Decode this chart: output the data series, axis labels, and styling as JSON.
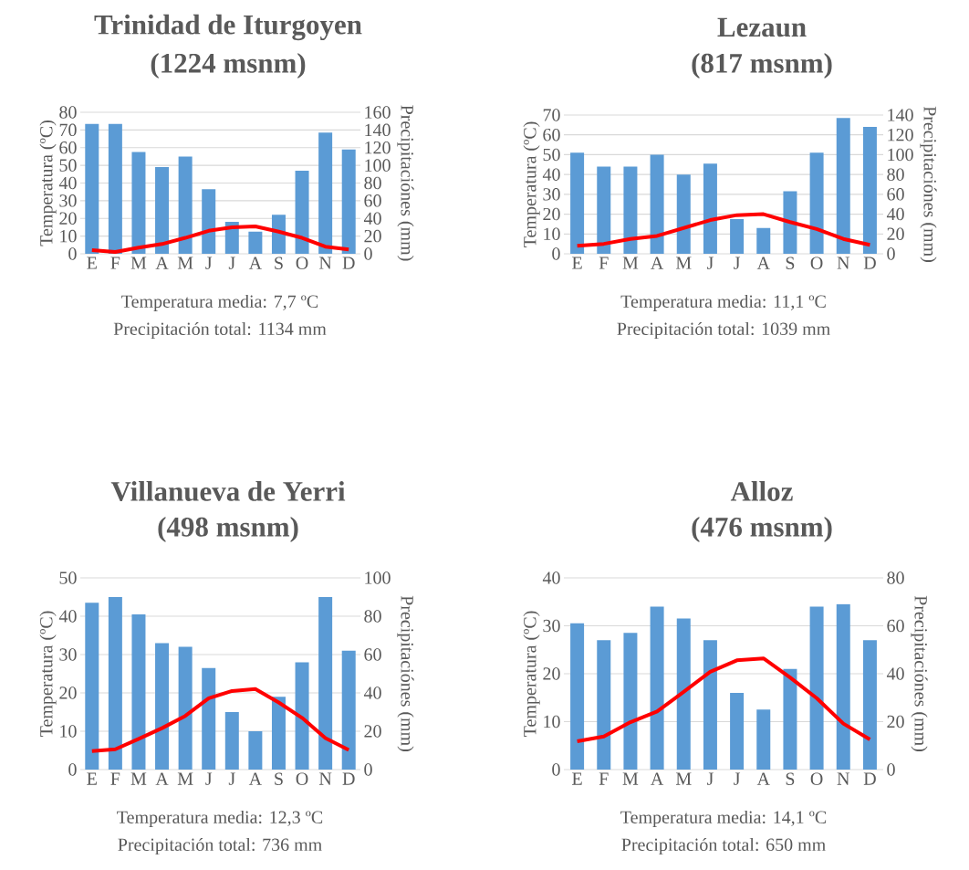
{
  "chart_data": [
    {
      "type": "bar",
      "title": "Trinidad de Iturgoyen",
      "subtitle": "(1224 msnm)",
      "categories": [
        "E",
        "F",
        "M",
        "A",
        "M",
        "J",
        "J",
        "A",
        "S",
        "O",
        "N",
        "D"
      ],
      "ylabel": "Temperatura (ºC)",
      "y2label": "Precipitaciónes (mm)",
      "ylim": [
        0,
        80
      ],
      "yticks": [
        0,
        10,
        20,
        30,
        40,
        50,
        60,
        70,
        80
      ],
      "y2lim": [
        0,
        160
      ],
      "y2ticks": [
        0,
        20,
        40,
        60,
        80,
        100,
        120,
        140,
        160
      ],
      "grid": "y",
      "annotations": [
        "Temperatura media: 7,7 ºC",
        "Precipitación total: 1134 mm"
      ],
      "series": [
        {
          "axis": "y2",
          "color": "#5b9bd5",
          "values": [
            147,
            147,
            115,
            98,
            110,
            73,
            36,
            25,
            44,
            94,
            137,
            118
          ]
        },
        {
          "type": "line",
          "color": "#ff0000",
          "values": [
            2,
            1,
            3.5,
            5.5,
            9,
            13,
            15,
            15.5,
            12.5,
            9,
            4,
            2.5
          ]
        }
      ]
    },
    {
      "type": "bar",
      "title": "Lezaun",
      "subtitle": "(817 msnm)",
      "categories": [
        "E",
        "F",
        "M",
        "A",
        "M",
        "J",
        "J",
        "A",
        "S",
        "O",
        "N",
        "D"
      ],
      "ylabel": "Temperatura (ºC)",
      "y2label": "Precipitaciónes (mm)",
      "ylim": [
        0,
        70
      ],
      "yticks": [
        0,
        10,
        20,
        30,
        40,
        50,
        60,
        70
      ],
      "y2lim": [
        0,
        140
      ],
      "y2ticks": [
        0,
        20,
        40,
        60,
        80,
        100,
        120,
        140
      ],
      "grid": "y",
      "annotations": [
        "Temperatura media: 11,1 ºC",
        "Precipitación total: 1039 mm"
      ],
      "series": [
        {
          "axis": "y2",
          "color": "#5b9bd5",
          "values": [
            102,
            88,
            88,
            100,
            80,
            91,
            35,
            26,
            63,
            102,
            137,
            128
          ]
        },
        {
          "type": "line",
          "color": "#ff0000",
          "values": [
            4,
            5,
            7.5,
            9,
            13,
            17,
            19.5,
            20,
            16,
            12.5,
            7.5,
            4.5
          ]
        }
      ]
    },
    {
      "type": "bar",
      "title": "Villanueva de Yerri",
      "subtitle": "(498 msnm)",
      "categories": [
        "E",
        "F",
        "M",
        "A",
        "M",
        "J",
        "J",
        "A",
        "S",
        "O",
        "N",
        "D"
      ],
      "ylabel": "Temperatura (ºC)",
      "y2label": "Precipitaciónes (mm)",
      "ylim": [
        0,
        50
      ],
      "yticks": [
        0,
        10,
        20,
        30,
        40,
        50
      ],
      "y2lim": [
        0,
        100
      ],
      "y2ticks": [
        0,
        20,
        40,
        60,
        80,
        100
      ],
      "grid": "y",
      "annotations": [
        "Temperatura media: 12,3 ºC",
        "Precipitación total: 736 mm"
      ],
      "series": [
        {
          "axis": "y2",
          "color": "#5b9bd5",
          "values": [
            87,
            90,
            81,
            66,
            64,
            53,
            30,
            20,
            38,
            56,
            90,
            62
          ]
        },
        {
          "type": "line",
          "color": "#ff0000",
          "values": [
            4.8,
            5.3,
            8,
            10.8,
            14,
            18.6,
            20.5,
            21,
            17.5,
            13.5,
            8.2,
            5.1
          ]
        }
      ]
    },
    {
      "type": "bar",
      "title": "Alloz",
      "subtitle": "(476 msnm)",
      "categories": [
        "E",
        "F",
        "M",
        "A",
        "M",
        "J",
        "J",
        "A",
        "S",
        "O",
        "N",
        "D"
      ],
      "ylabel": "Temperatura (ºC)",
      "y2label": "Precipitaciónes (mm)",
      "ylim": [
        0,
        40
      ],
      "yticks": [
        0,
        10,
        20,
        30,
        40
      ],
      "y2lim": [
        0,
        80
      ],
      "y2ticks": [
        0,
        20,
        40,
        60,
        80
      ],
      "grid": "y",
      "annotations": [
        "Temperatura media: 14,1 ºC",
        "Precipitación total: 650 mm"
      ],
      "series": [
        {
          "axis": "y2",
          "color": "#5b9bd5",
          "values": [
            61,
            54,
            57,
            68,
            63,
            54,
            32,
            25,
            42,
            68,
            69,
            54
          ]
        },
        {
          "type": "line",
          "color": "#ff0000",
          "values": [
            5.9,
            6.9,
            9.9,
            12.1,
            16.2,
            20.4,
            22.8,
            23.2,
            19.2,
            14.9,
            9.6,
            6.3
          ]
        }
      ]
    }
  ]
}
